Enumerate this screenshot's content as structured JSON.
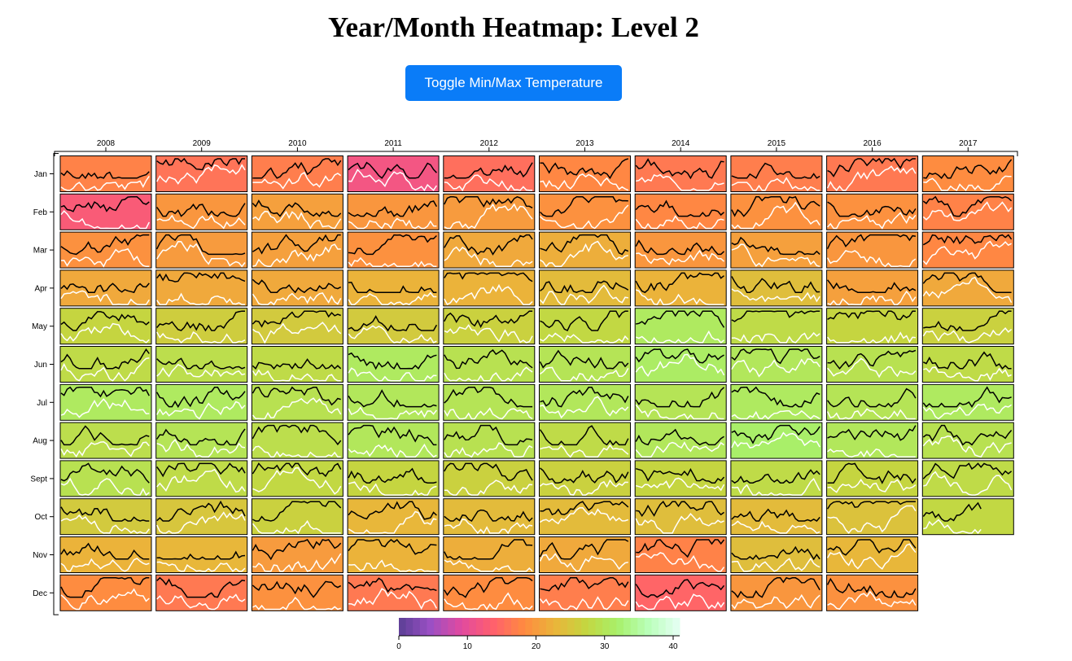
{
  "page": {
    "title": "Year/Month Heatmap: Level 2",
    "toggle_button_label": "Toggle Min/Max Temperature"
  },
  "chart_data": {
    "type": "heatmap",
    "title": "Year/Month Heatmap: Level 2",
    "x_axis": {
      "position": "top",
      "categories": [
        "2008",
        "2009",
        "2010",
        "2011",
        "2012",
        "2013",
        "2014",
        "2015",
        "2016",
        "2017"
      ]
    },
    "y_axis": {
      "position": "left",
      "categories": [
        "Jan",
        "Feb",
        "Mar",
        "Apr",
        "May",
        "Jun",
        "Jul",
        "Aug",
        "Sept",
        "Oct",
        "Nov",
        "Dec"
      ]
    },
    "color_scale": {
      "domain": [
        0,
        40
      ],
      "ticks": [
        "0",
        "10",
        "20",
        "30",
        "40"
      ],
      "stops": [
        "#5b3f95",
        "#9a4fc4",
        "#e14aa0",
        "#ff5f6e",
        "#ff8a40",
        "#eab53a",
        "#c4d640",
        "#a8f06a",
        "#b9ffb9",
        "#e6fff5"
      ]
    },
    "lines": {
      "max_temperature_color": "#000000",
      "min_temperature_color": "#ffffff"
    },
    "cells": [
      {
        "year": "2008",
        "month": "Jan",
        "value": 17.0
      },
      {
        "year": "2008",
        "month": "Feb",
        "value": 12.5
      },
      {
        "year": "2008",
        "month": "Mar",
        "value": 18.5
      },
      {
        "year": "2008",
        "month": "Apr",
        "value": 21.0
      },
      {
        "year": "2008",
        "month": "May",
        "value": 26.5
      },
      {
        "year": "2008",
        "month": "Jun",
        "value": 27.5
      },
      {
        "year": "2008",
        "month": "Jul",
        "value": 30.0
      },
      {
        "year": "2008",
        "month": "Aug",
        "value": 28.0
      },
      {
        "year": "2008",
        "month": "Sept",
        "value": 28.5
      },
      {
        "year": "2008",
        "month": "Oct",
        "value": 25.0
      },
      {
        "year": "2008",
        "month": "Nov",
        "value": 22.0
      },
      {
        "year": "2008",
        "month": "Dec",
        "value": 18.0
      },
      {
        "year": "2009",
        "month": "Jan",
        "value": 15.5
      },
      {
        "year": "2009",
        "month": "Feb",
        "value": 19.0
      },
      {
        "year": "2009",
        "month": "Mar",
        "value": 19.5
      },
      {
        "year": "2009",
        "month": "Apr",
        "value": 21.0
      },
      {
        "year": "2009",
        "month": "May",
        "value": 25.5
      },
      {
        "year": "2009",
        "month": "Jun",
        "value": 28.0
      },
      {
        "year": "2009",
        "month": "Jul",
        "value": 30.0
      },
      {
        "year": "2009",
        "month": "Aug",
        "value": 29.0
      },
      {
        "year": "2009",
        "month": "Sept",
        "value": 27.5
      },
      {
        "year": "2009",
        "month": "Oct",
        "value": 24.5
      },
      {
        "year": "2009",
        "month": "Nov",
        "value": 22.5
      },
      {
        "year": "2009",
        "month": "Dec",
        "value": 16.0
      },
      {
        "year": "2010",
        "month": "Jan",
        "value": 16.5
      },
      {
        "year": "2010",
        "month": "Feb",
        "value": 20.0
      },
      {
        "year": "2010",
        "month": "Mar",
        "value": 20.0
      },
      {
        "year": "2010",
        "month": "Apr",
        "value": 21.0
      },
      {
        "year": "2010",
        "month": "May",
        "value": 25.0
      },
      {
        "year": "2010",
        "month": "Jun",
        "value": 27.5
      },
      {
        "year": "2010",
        "month": "Jul",
        "value": 28.5
      },
      {
        "year": "2010",
        "month": "Aug",
        "value": 28.0
      },
      {
        "year": "2010",
        "month": "Sept",
        "value": 27.0
      },
      {
        "year": "2010",
        "month": "Oct",
        "value": 26.0
      },
      {
        "year": "2010",
        "month": "Nov",
        "value": 19.5
      },
      {
        "year": "2010",
        "month": "Dec",
        "value": 18.5
      },
      {
        "year": "2011",
        "month": "Jan",
        "value": 11.5
      },
      {
        "year": "2011",
        "month": "Feb",
        "value": 19.0
      },
      {
        "year": "2011",
        "month": "Mar",
        "value": 18.5
      },
      {
        "year": "2011",
        "month": "Apr",
        "value": 22.0
      },
      {
        "year": "2011",
        "month": "May",
        "value": 25.0
      },
      {
        "year": "2011",
        "month": "Jun",
        "value": 30.0
      },
      {
        "year": "2011",
        "month": "Jul",
        "value": 29.5
      },
      {
        "year": "2011",
        "month": "Aug",
        "value": 29.5
      },
      {
        "year": "2011",
        "month": "Sept",
        "value": 26.5
      },
      {
        "year": "2011",
        "month": "Oct",
        "value": 22.5
      },
      {
        "year": "2011",
        "month": "Nov",
        "value": 22.0
      },
      {
        "year": "2011",
        "month": "Dec",
        "value": 16.0
      },
      {
        "year": "2012",
        "month": "Jan",
        "value": 15.0
      },
      {
        "year": "2012",
        "month": "Feb",
        "value": 19.5
      },
      {
        "year": "2012",
        "month": "Mar",
        "value": 21.0
      },
      {
        "year": "2012",
        "month": "Apr",
        "value": 22.0
      },
      {
        "year": "2012",
        "month": "May",
        "value": 26.0
      },
      {
        "year": "2012",
        "month": "Jun",
        "value": 28.5
      },
      {
        "year": "2012",
        "month": "Jul",
        "value": 29.0
      },
      {
        "year": "2012",
        "month": "Aug",
        "value": 28.5
      },
      {
        "year": "2012",
        "month": "Sept",
        "value": 26.0
      },
      {
        "year": "2012",
        "month": "Oct",
        "value": 23.0
      },
      {
        "year": "2012",
        "month": "Nov",
        "value": 21.5
      },
      {
        "year": "2012",
        "month": "Dec",
        "value": 18.0
      },
      {
        "year": "2013",
        "month": "Jan",
        "value": 17.5
      },
      {
        "year": "2013",
        "month": "Feb",
        "value": 18.5
      },
      {
        "year": "2013",
        "month": "Mar",
        "value": 21.5
      },
      {
        "year": "2013",
        "month": "Apr",
        "value": 23.0
      },
      {
        "year": "2013",
        "month": "May",
        "value": 27.0
      },
      {
        "year": "2013",
        "month": "Jun",
        "value": 29.0
      },
      {
        "year": "2013",
        "month": "Jul",
        "value": 29.5
      },
      {
        "year": "2013",
        "month": "Aug",
        "value": 27.5
      },
      {
        "year": "2013",
        "month": "Sept",
        "value": 26.0
      },
      {
        "year": "2013",
        "month": "Oct",
        "value": 23.0
      },
      {
        "year": "2013",
        "month": "Nov",
        "value": 21.0
      },
      {
        "year": "2013",
        "month": "Dec",
        "value": 16.5
      },
      {
        "year": "2014",
        "month": "Jan",
        "value": 16.0
      },
      {
        "year": "2014",
        "month": "Feb",
        "value": 17.5
      },
      {
        "year": "2014",
        "month": "Mar",
        "value": 19.0
      },
      {
        "year": "2014",
        "month": "Apr",
        "value": 22.0
      },
      {
        "year": "2014",
        "month": "May",
        "value": 30.0
      },
      {
        "year": "2014",
        "month": "Jun",
        "value": 30.5
      },
      {
        "year": "2014",
        "month": "Jul",
        "value": 29.0
      },
      {
        "year": "2014",
        "month": "Aug",
        "value": 29.5
      },
      {
        "year": "2014",
        "month": "Sept",
        "value": 26.5
      },
      {
        "year": "2014",
        "month": "Oct",
        "value": 23.5
      },
      {
        "year": "2014",
        "month": "Nov",
        "value": 17.0
      },
      {
        "year": "2014",
        "month": "Dec",
        "value": 14.0
      },
      {
        "year": "2015",
        "month": "Jan",
        "value": 16.5
      },
      {
        "year": "2015",
        "month": "Feb",
        "value": 18.5
      },
      {
        "year": "2015",
        "month": "Mar",
        "value": 20.0
      },
      {
        "year": "2015",
        "month": "Apr",
        "value": 23.5
      },
      {
        "year": "2015",
        "month": "May",
        "value": 27.5
      },
      {
        "year": "2015",
        "month": "Jun",
        "value": 29.5
      },
      {
        "year": "2015",
        "month": "Jul",
        "value": 30.0
      },
      {
        "year": "2015",
        "month": "Aug",
        "value": 31.0
      },
      {
        "year": "2015",
        "month": "Sept",
        "value": 27.5
      },
      {
        "year": "2015",
        "month": "Oct",
        "value": 23.0
      },
      {
        "year": "2015",
        "month": "Nov",
        "value": 23.5
      },
      {
        "year": "2015",
        "month": "Dec",
        "value": 19.0
      },
      {
        "year": "2016",
        "month": "Jan",
        "value": 16.0
      },
      {
        "year": "2016",
        "month": "Feb",
        "value": 18.5
      },
      {
        "year": "2016",
        "month": "Mar",
        "value": 19.0
      },
      {
        "year": "2016",
        "month": "Apr",
        "value": 20.0
      },
      {
        "year": "2016",
        "month": "May",
        "value": 26.5
      },
      {
        "year": "2016",
        "month": "Jun",
        "value": 28.5
      },
      {
        "year": "2016",
        "month": "Jul",
        "value": 29.0
      },
      {
        "year": "2016",
        "month": "Aug",
        "value": 29.5
      },
      {
        "year": "2016",
        "month": "Sept",
        "value": 26.5
      },
      {
        "year": "2016",
        "month": "Oct",
        "value": 24.0
      },
      {
        "year": "2016",
        "month": "Nov",
        "value": 22.5
      },
      {
        "year": "2016",
        "month": "Dec",
        "value": 18.5
      },
      {
        "year": "2017",
        "month": "Jan",
        "value": 18.0
      },
      {
        "year": "2017",
        "month": "Feb",
        "value": 17.0
      },
      {
        "year": "2017",
        "month": "Mar",
        "value": 17.5
      },
      {
        "year": "2017",
        "month": "Apr",
        "value": 21.0
      },
      {
        "year": "2017",
        "month": "May",
        "value": 26.0
      },
      {
        "year": "2017",
        "month": "Jun",
        "value": 27.5
      },
      {
        "year": "2017",
        "month": "Jul",
        "value": 30.0
      },
      {
        "year": "2017",
        "month": "Aug",
        "value": 28.5
      },
      {
        "year": "2017",
        "month": "Sept",
        "value": 27.5
      },
      {
        "year": "2017",
        "month": "Oct",
        "value": 27.0
      }
    ]
  }
}
